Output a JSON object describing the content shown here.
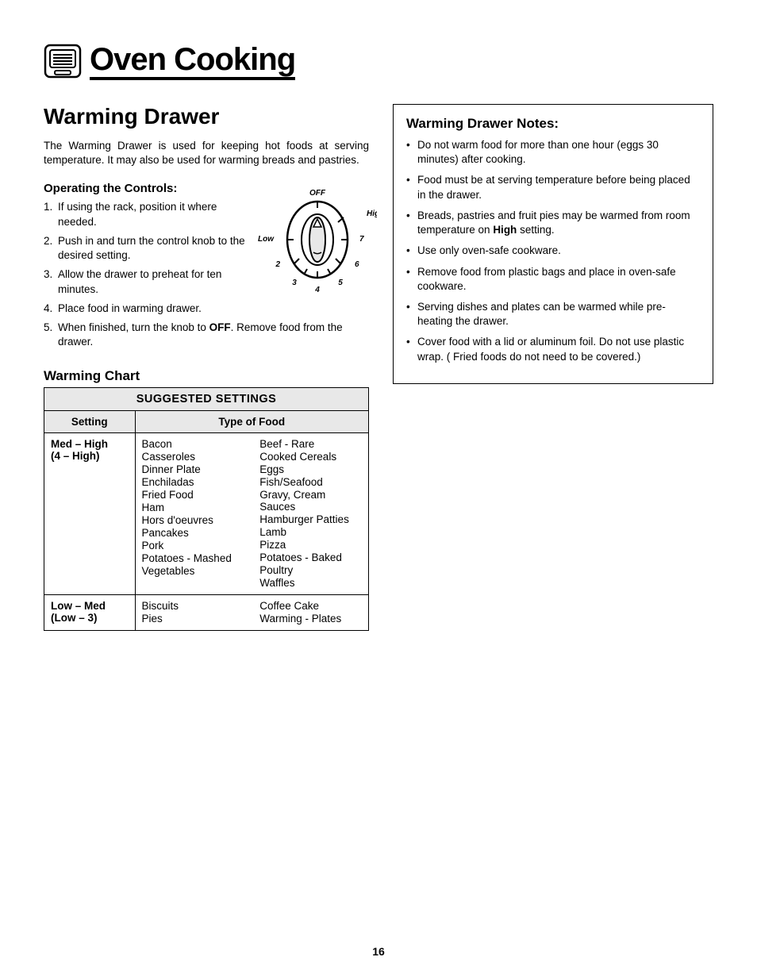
{
  "header": {
    "title": "Oven Cooking"
  },
  "left": {
    "section_title": "Warming Drawer",
    "intro": "The Warming Drawer is used for keeping hot foods at serving temperature. It may also be used for warming breads and pastries.",
    "operating": {
      "heading": "Operating the Controls:",
      "steps": [
        {
          "n": "1.",
          "t": "If using the rack, position it where needed.",
          "narrow": true
        },
        {
          "n": "2.",
          "t": "Push in and turn the control knob to the desired setting.",
          "narrow": true
        },
        {
          "n": "3.",
          "t": "Allow the drawer to preheat for ten minutes.",
          "narrow": true
        },
        {
          "n": "4.",
          "t": "Place food in warming drawer."
        },
        {
          "n": "5.",
          "html": "When finished, turn the knob to <b>OFF</b>. Remove food from the drawer."
        }
      ]
    },
    "knob": {
      "labels": {
        "off": "OFF",
        "high": "High",
        "low": "Low",
        "n2": "2",
        "n3": "3",
        "n4": "4",
        "n5": "5",
        "n6": "6",
        "n7": "7"
      }
    },
    "chart": {
      "heading": "Warming Chart",
      "table_title": "SUGGESTED SETTINGS",
      "col_setting": "Setting",
      "col_food": "Type of Food",
      "rows": [
        {
          "setting_l1": "Med – High",
          "setting_l2": "(4 – High)",
          "foods_left": [
            "Bacon",
            "Casseroles",
            "Dinner Plate",
            "Enchiladas",
            "Fried Food",
            "Ham",
            "Hors d'oeuvres",
            "Pancakes",
            "Pork",
            "Potatoes - Mashed",
            "Vegetables"
          ],
          "foods_right": [
            "Beef - Rare",
            "Cooked Cereals",
            "Eggs",
            "Fish/Seafood",
            "Gravy, Cream Sauces",
            "Hamburger Patties",
            "Lamb",
            "Pizza",
            "Potatoes - Baked",
            "Poultry",
            "Waffles"
          ]
        },
        {
          "setting_l1": "Low – Med",
          "setting_l2": "(Low – 3)",
          "foods_left": [
            "Biscuits",
            "Pies"
          ],
          "foods_right": [
            "Coffee Cake",
            "Warming - Plates"
          ]
        }
      ]
    }
  },
  "right": {
    "notes_heading": "Warming Drawer Notes:",
    "notes": [
      {
        "t": "Do not warm food for more than one hour (eggs 30 minutes) after cooking."
      },
      {
        "t": "Food must be at serving temperature before being placed in the drawer."
      },
      {
        "html": "Breads, pastries and fruit pies may be warmed from room temperature on <b>High</b> setting."
      },
      {
        "t": "Use only oven-safe cookware."
      },
      {
        "t": "Remove food from plastic bags and place in oven-safe cookware."
      },
      {
        "t": "Serving dishes and plates can be warmed while pre-heating the drawer."
      },
      {
        "t": "Cover food with a lid or aluminum foil. Do not use plastic wrap. ( Fried foods do not need to be covered.)"
      }
    ]
  },
  "page_number": "16"
}
